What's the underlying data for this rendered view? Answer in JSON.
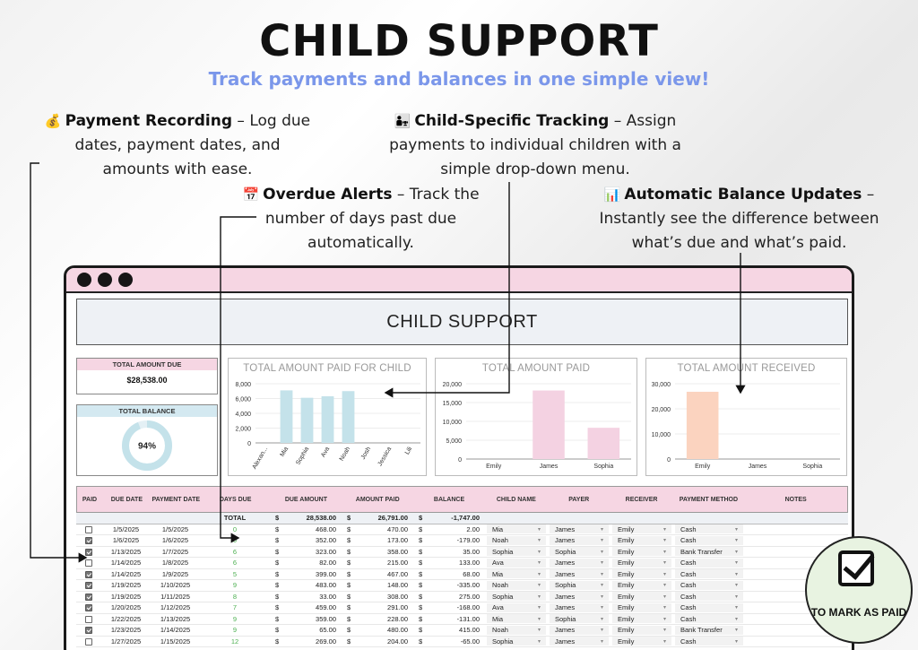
{
  "header": {
    "title": "CHILD SUPPORT",
    "subtitle": "Track payments and balances in one simple view!"
  },
  "callouts": {
    "payment_recording": {
      "icon": "money-bag-icon",
      "glyph": "💰",
      "title": "Payment Recording",
      "text": " – Log due dates, payment dates, and amounts with ease."
    },
    "child_tracking": {
      "icon": "family-icon",
      "glyph": "👨‍👧",
      "title": "Child-Specific Tracking",
      "text": " – Assign payments to individual children with a simple drop-down menu."
    },
    "overdue_alerts": {
      "icon": "calendar-icon",
      "glyph": "📅",
      "title": "Overdue Alerts",
      "text": " – Track the number of days past due automatically."
    },
    "balance_updates": {
      "icon": "bar-chart-icon",
      "glyph": "📊",
      "title": "Automatic Balance Updates",
      "text": " – Instantly see the difference between what’s due and what’s paid."
    }
  },
  "sheet": {
    "title": "CHILD SUPPORT",
    "kpi_due": {
      "label": "TOTAL AMOUNT DUE",
      "value": "$28,538.00",
      "color": "#f6d6e3"
    },
    "kpi_balance": {
      "label": "TOTAL BALANCE",
      "value": "94%",
      "fraction": 0.94,
      "color": "#d4e9f1"
    }
  },
  "chart_data": [
    {
      "type": "bar",
      "title": "TOTAL AMOUNT PAID FOR CHILD",
      "categories": [
        "Alexan...",
        "Mia",
        "Sophia",
        "Ava",
        "Noah",
        "Josh",
        "Jessica",
        "Lili"
      ],
      "values": [
        0,
        7100,
        6100,
        6300,
        7000,
        0,
        0,
        0
      ],
      "yticks": [
        "8,000",
        "6,000",
        "4,000",
        "2,000",
        "0"
      ],
      "ylim": [
        0,
        8000
      ],
      "color": "#c4e2ea"
    },
    {
      "type": "bar",
      "title": "TOTAL AMOUNT PAID",
      "categories": [
        "Emily",
        "James",
        "Sophia"
      ],
      "values": [
        0,
        18200,
        8300
      ],
      "yticks": [
        "20,000",
        "15,000",
        "10,000",
        "5,000",
        "0"
      ],
      "ylim": [
        0,
        20000
      ],
      "color": "#f4d2e2"
    },
    {
      "type": "bar",
      "title": "TOTAL AMOUNT RECEIVED",
      "categories": [
        "Emily",
        "James",
        "Sophia"
      ],
      "values": [
        26791,
        0,
        0
      ],
      "yticks": [
        "30,000",
        "20,000",
        "10,000",
        "0"
      ],
      "ylim": [
        0,
        30000
      ],
      "color": "#fbd3bf"
    }
  ],
  "table": {
    "columns": [
      "PAID",
      "DUE DATE",
      "PAYMENT DATE",
      "DAYS DUE",
      "DUE AMOUNT",
      "AMOUNT PAID",
      "BALANCE",
      "CHILD NAME",
      "PAYER",
      "RECEIVER",
      "PAYMENT METHOD",
      "NOTES"
    ],
    "total": {
      "label": "TOTAL",
      "cur": "$",
      "due": "28,538.00",
      "paid": "26,791.00",
      "balance": "-1,747.00"
    },
    "rows": [
      {
        "paid": false,
        "due_date": "1/5/2025",
        "pay_date": "1/5/2025",
        "days": "0",
        "due": "468.00",
        "amt": "470.00",
        "bal": "2.00",
        "child": "Mia",
        "payer": "James",
        "recv": "Emily",
        "method": "Cash"
      },
      {
        "paid": true,
        "due_date": "1/6/2025",
        "pay_date": "1/6/2025",
        "days": "0",
        "due": "352.00",
        "amt": "173.00",
        "bal": "-179.00",
        "child": "Noah",
        "payer": "James",
        "recv": "Emily",
        "method": "Cash"
      },
      {
        "paid": true,
        "due_date": "1/13/2025",
        "pay_date": "1/7/2025",
        "days": "6",
        "due": "323.00",
        "amt": "358.00",
        "bal": "35.00",
        "child": "Sophia",
        "payer": "Sophia",
        "recv": "Emily",
        "method": "Bank Transfer"
      },
      {
        "paid": false,
        "due_date": "1/14/2025",
        "pay_date": "1/8/2025",
        "days": "6",
        "due": "82.00",
        "amt": "215.00",
        "bal": "133.00",
        "child": "Ava",
        "payer": "James",
        "recv": "Emily",
        "method": "Cash"
      },
      {
        "paid": true,
        "due_date": "1/14/2025",
        "pay_date": "1/9/2025",
        "days": "5",
        "due": "399.00",
        "amt": "467.00",
        "bal": "68.00",
        "child": "Mia",
        "payer": "James",
        "recv": "Emily",
        "method": "Cash"
      },
      {
        "paid": true,
        "due_date": "1/19/2025",
        "pay_date": "1/10/2025",
        "days": "9",
        "due": "483.00",
        "amt": "148.00",
        "bal": "-335.00",
        "child": "Noah",
        "payer": "Sophia",
        "recv": "Emily",
        "method": "Cash"
      },
      {
        "paid": true,
        "due_date": "1/19/2025",
        "pay_date": "1/11/2025",
        "days": "8",
        "due": "33.00",
        "amt": "308.00",
        "bal": "275.00",
        "child": "Sophia",
        "payer": "James",
        "recv": "Emily",
        "method": "Cash"
      },
      {
        "paid": true,
        "due_date": "1/20/2025",
        "pay_date": "1/12/2025",
        "days": "7",
        "due": "459.00",
        "amt": "291.00",
        "bal": "-168.00",
        "child": "Ava",
        "payer": "James",
        "recv": "Emily",
        "method": "Cash"
      },
      {
        "paid": false,
        "due_date": "1/22/2025",
        "pay_date": "1/13/2025",
        "days": "9",
        "due": "359.00",
        "amt": "228.00",
        "bal": "-131.00",
        "child": "Mia",
        "payer": "Sophia",
        "recv": "Emily",
        "method": "Cash"
      },
      {
        "paid": true,
        "due_date": "1/23/2025",
        "pay_date": "1/14/2025",
        "days": "9",
        "due": "65.00",
        "amt": "480.00",
        "bal": "415.00",
        "child": "Noah",
        "payer": "James",
        "recv": "Emily",
        "method": "Bank Transfer"
      },
      {
        "paid": false,
        "due_date": "1/27/2025",
        "pay_date": "1/15/2025",
        "days": "12",
        "due": "269.00",
        "amt": "204.00",
        "bal": "-65.00",
        "child": "Sophia",
        "payer": "James",
        "recv": "Emily",
        "method": "Cash"
      }
    ]
  },
  "badge": {
    "label": "TO MARK AS PAID",
    "icon": "checkbox-icon"
  }
}
